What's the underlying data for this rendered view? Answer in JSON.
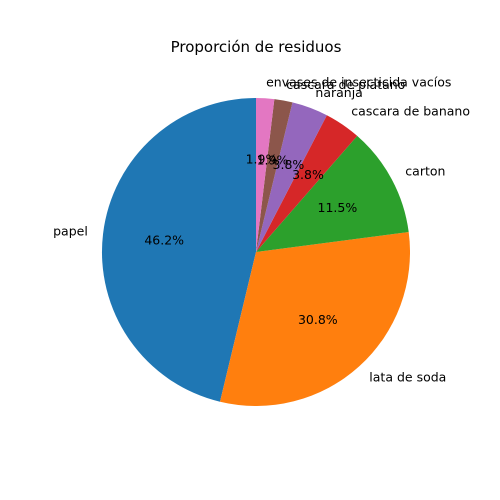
{
  "chart_data": {
    "type": "pie",
    "title": "Proporción de residuos",
    "start_angle_deg": 90,
    "direction": "counterclockwise",
    "slices": [
      {
        "label": "papel",
        "value": 46.2,
        "pct_label": "46.2%",
        "color": "#1f77b4"
      },
      {
        "label": "lata de soda",
        "value": 30.8,
        "pct_label": "30.8%",
        "color": "#ff7f0e"
      },
      {
        "label": "carton",
        "value": 11.5,
        "pct_label": "11.5%",
        "color": "#2ca02c"
      },
      {
        "label": "cascara de banano",
        "value": 3.8,
        "pct_label": "3.8%",
        "color": "#d62728"
      },
      {
        "label": "naranja",
        "value": 3.8,
        "pct_label": "3.8%",
        "color": "#9467bd"
      },
      {
        "label": "cascara de platano",
        "value": 1.9,
        "pct_label": "1.9%",
        "color": "#8c564b"
      },
      {
        "label": "envases de insecticida vacíos",
        "value": 1.9,
        "pct_label": "1.9%",
        "color": "#e377c2"
      }
    ]
  }
}
